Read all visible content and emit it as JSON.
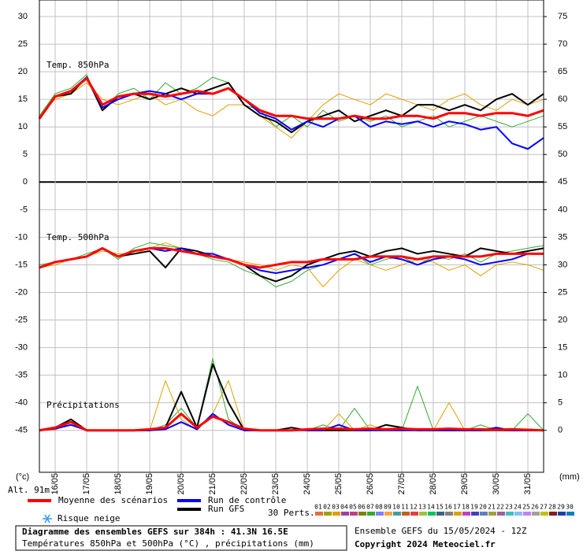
{
  "chart_data": {
    "type": "line",
    "annotations": [
      "Temp. 850hPa",
      "Temp. 500hPa",
      "Précipitations"
    ],
    "y_unit_label": "(°c)",
    "y2_unit_label": "(mm)",
    "altitude_label": "Alt. 91m",
    "x": [
      0,
      12,
      24,
      36,
      48,
      60,
      72,
      84,
      96,
      108,
      120,
      132,
      144,
      156,
      168,
      180,
      192,
      204,
      216,
      228,
      240,
      252,
      264,
      276,
      288,
      300,
      312,
      324,
      336,
      348,
      360,
      372,
      384
    ],
    "xlim": [
      0,
      384
    ],
    "xticks": [
      {
        "value": 12,
        "label": "16/05"
      },
      {
        "value": 36,
        "label": "17/05"
      },
      {
        "value": 60,
        "label": "18/05"
      },
      {
        "value": 84,
        "label": "19/05"
      },
      {
        "value": 108,
        "label": "20/05"
      },
      {
        "value": 132,
        "label": "21/05"
      },
      {
        "value": 156,
        "label": "22/05"
      },
      {
        "value": 180,
        "label": "23/05"
      },
      {
        "value": 204,
        "label": "24/05"
      },
      {
        "value": 228,
        "label": "25/05"
      },
      {
        "value": 252,
        "label": "26/05"
      },
      {
        "value": 276,
        "label": "27/05"
      },
      {
        "value": 300,
        "label": "28/05"
      },
      {
        "value": 324,
        "label": "29/05"
      },
      {
        "value": 348,
        "label": "30/05"
      },
      {
        "value": 372,
        "label": "31/05"
      }
    ],
    "ylim": [
      -52.6,
      33
    ],
    "yticks": [
      30,
      25,
      20,
      15,
      10,
      5,
      0,
      -5,
      -10,
      -15,
      -20,
      -25,
      -30,
      -35,
      -40,
      -45
    ],
    "y2lim": [
      -7.6,
      78
    ],
    "y2ticks": [
      75,
      70,
      65,
      60,
      55,
      50,
      45,
      40,
      35,
      30,
      25,
      20,
      15,
      10,
      5,
      0
    ],
    "grid": true,
    "series": [
      {
        "name": "Moyenne des scénarios",
        "color": "#ff0000",
        "width": 3,
        "t850": [
          11.5,
          15.5,
          16.5,
          18.8,
          14,
          15.5,
          16,
          16,
          15.5,
          16,
          16.5,
          16,
          17,
          15,
          13,
          12,
          12,
          11.5,
          11.5,
          11.5,
          12,
          11.5,
          11.5,
          12,
          12,
          11.5,
          12.5,
          12.5,
          12,
          12.5,
          12.5,
          12,
          13
        ],
        "t500": [
          -15.5,
          -14.5,
          -14,
          -13.5,
          -12,
          -13.5,
          -12.5,
          -12,
          -12,
          -12.5,
          -13,
          -13.5,
          -14,
          -15,
          -15.5,
          -15,
          -14.5,
          -14.5,
          -14,
          -14,
          -14,
          -13.5,
          -13.5,
          -13.5,
          -14,
          -13.5,
          -13.5,
          -13.5,
          -13.5,
          -13,
          -13,
          -13,
          -13
        ],
        "precip": [
          0,
          0.5,
          1.5,
          0,
          0,
          0,
          0,
          0.2,
          0.5,
          3,
          0.5,
          2.5,
          1.5,
          0.3,
          0,
          0,
          0,
          0.2,
          0.3,
          0.3,
          0.2,
          0.3,
          0.2,
          0.3,
          0.2,
          0.2,
          0.3,
          0.2,
          0.2,
          0.1,
          0.2,
          0.1,
          0
        ]
      },
      {
        "name": "Run de contrôle",
        "color": "#0000ff",
        "width": 2,
        "t850": [
          11.5,
          15.5,
          16.5,
          19,
          13.5,
          15,
          16,
          16.5,
          16,
          15,
          16,
          16,
          17,
          15,
          12.5,
          11.5,
          9.5,
          11,
          10,
          11.5,
          12,
          10,
          11,
          10.5,
          11,
          10,
          11,
          10.5,
          9.5,
          10,
          7,
          6,
          8
        ],
        "t500": [
          -15.5,
          -14.5,
          -14,
          -13.5,
          -12,
          -13.5,
          -12.5,
          -12,
          -12.5,
          -12,
          -13,
          -13,
          -14,
          -15,
          -16,
          -16.5,
          -16,
          -15.5,
          -15,
          -14,
          -13,
          -14.5,
          -13.5,
          -14,
          -15,
          -14,
          -13.5,
          -14,
          -15,
          -14.5,
          -14,
          -13,
          -13
        ],
        "precip": [
          0,
          0.3,
          1,
          0,
          0,
          0,
          0,
          0,
          0.2,
          1.5,
          0.2,
          3,
          1,
          0,
          0,
          0,
          0,
          0,
          0,
          1,
          0,
          0,
          0,
          0,
          0,
          0,
          0,
          0,
          0,
          0.5,
          0,
          0,
          0
        ]
      },
      {
        "name": "Run GFS",
        "color": "#000000",
        "width": 2,
        "t850": [
          11.5,
          15.5,
          16,
          19,
          13,
          15.5,
          16,
          15,
          16,
          17,
          16,
          17,
          18,
          14,
          12,
          11,
          9,
          11,
          12,
          13,
          11,
          12,
          13,
          12,
          14,
          14,
          13,
          14,
          13,
          15,
          16,
          14,
          16
        ],
        "t500": [
          -15.5,
          -14.5,
          -14,
          -13.5,
          -12,
          -13.5,
          -13,
          -12.5,
          -15.5,
          -12,
          -12.5,
          -13.5,
          -14,
          -15,
          -17,
          -18,
          -17,
          -15,
          -14,
          -13,
          -12.5,
          -13.5,
          -12.5,
          -12,
          -13,
          -12.5,
          -13,
          -13.5,
          -12,
          -12.5,
          -13,
          -12.5,
          -12
        ],
        "precip": [
          0,
          0.5,
          2,
          0,
          0,
          0,
          0,
          0,
          0.5,
          7,
          0.5,
          12,
          5,
          0,
          0,
          0,
          0.5,
          0,
          0,
          0,
          0,
          0,
          1,
          0.5,
          0,
          0,
          0,
          0,
          0,
          0,
          0,
          0,
          0
        ]
      }
    ],
    "snow_label": "Risque neige",
    "perturbations_label": "30 Perts.",
    "perturbations": [
      {
        "name": "01",
        "color": "#e07040"
      },
      {
        "name": "02",
        "color": "#a0a000"
      },
      {
        "name": "03",
        "color": "#e0a000"
      },
      {
        "name": "04",
        "color": "#a040a0"
      },
      {
        "name": "05",
        "color": "#c04080"
      },
      {
        "name": "06",
        "color": "#808000"
      },
      {
        "name": "07",
        "color": "#33aa33",
        "t850": [
          12,
          16,
          17,
          19.5,
          13,
          16,
          17,
          15,
          18,
          16,
          17,
          19,
          18,
          14,
          13,
          10,
          12,
          10,
          13,
          11,
          12,
          11,
          12,
          10,
          11,
          12,
          10,
          11,
          12,
          11,
          10,
          11,
          12
        ],
        "t500": [
          -15,
          -14.5,
          -14,
          -13,
          -12,
          -14,
          -12,
          -11,
          -11.5,
          -12,
          -13,
          -14,
          -14.5,
          -16,
          -17,
          -19,
          -18,
          -16,
          -15,
          -14,
          -13,
          -15,
          -14,
          -13.5,
          -15,
          -13.5,
          -14,
          -13,
          -14.5,
          -13,
          -12.5,
          -12,
          -11.5
        ],
        "precip": [
          0,
          0.5,
          1,
          0,
          0,
          0,
          0,
          0,
          1,
          4,
          0.5,
          13,
          2,
          0,
          0,
          0,
          0,
          0,
          1,
          0,
          4,
          0,
          0,
          0,
          8,
          0,
          0,
          0,
          1,
          0,
          0,
          3,
          0
        ]
      },
      {
        "name": "08",
        "color": "#8080ff"
      },
      {
        "name": "09",
        "color": "#ffa040"
      },
      {
        "name": "10",
        "color": "#40a0a0"
      },
      {
        "name": "11",
        "color": "#c06020"
      },
      {
        "name": "12",
        "color": "#e04040"
      },
      {
        "name": "13",
        "color": "#a0c040"
      },
      {
        "name": "14",
        "color": "#00c060"
      },
      {
        "name": "15",
        "color": "#406080"
      },
      {
        "name": "16",
        "color": "#808080"
      },
      {
        "name": "17",
        "color": "#e0a000",
        "t850": [
          12,
          15,
          16,
          18,
          15,
          14,
          15,
          16,
          14,
          15,
          13,
          12,
          14,
          14,
          12,
          10,
          8,
          11,
          14,
          16,
          15,
          14,
          16,
          15,
          14,
          13,
          15,
          16,
          14,
          13,
          15,
          14,
          15
        ],
        "t500": [
          -15.5,
          -15,
          -14,
          -13.5,
          -12.5,
          -13,
          -13,
          -12,
          -11,
          -12,
          -12.5,
          -13,
          -14,
          -14.5,
          -15,
          -16,
          -15,
          -15.5,
          -19,
          -16,
          -14,
          -15,
          -16,
          -15,
          -14,
          -14.5,
          -16,
          -15,
          -17,
          -15,
          -14.5,
          -15,
          -16
        ],
        "precip": [
          0,
          0,
          2,
          0,
          0,
          0,
          0,
          0,
          9,
          2,
          0,
          3,
          9,
          0,
          0,
          0,
          0,
          0,
          0,
          3,
          0,
          1,
          0,
          0,
          0,
          0,
          5,
          0,
          0,
          0,
          0,
          0,
          0
        ]
      },
      {
        "name": "18",
        "color": "#c040c0"
      },
      {
        "name": "19",
        "color": "#4040c0"
      },
      {
        "name": "20",
        "color": "#6080c0"
      },
      {
        "name": "21",
        "color": "#a0a040"
      },
      {
        "name": "22",
        "color": "#a060a0"
      },
      {
        "name": "23",
        "color": "#40c0c0"
      },
      {
        "name": "24",
        "color": "#80c0ff"
      },
      {
        "name": "25",
        "color": "#c080ff"
      },
      {
        "name": "26",
        "color": "#a0a0a0"
      },
      {
        "name": "27",
        "color": "#c0c000"
      },
      {
        "name": "28",
        "color": "#802020"
      },
      {
        "name": "29",
        "color": "#2040a0"
      },
      {
        "name": "30",
        "color": "#0080c0"
      }
    ],
    "footer": {
      "title": "Diagramme des ensembles GEFS sur 384h : 41.3N 16.5E",
      "subtitle": "Températures 850hPa et 500hPa (°C) , précipitations (mm)",
      "run": "Ensemble GEFS du 15/05/2024 - 12Z",
      "copyright": "Copyright 2024 Meteociel.fr"
    }
  }
}
